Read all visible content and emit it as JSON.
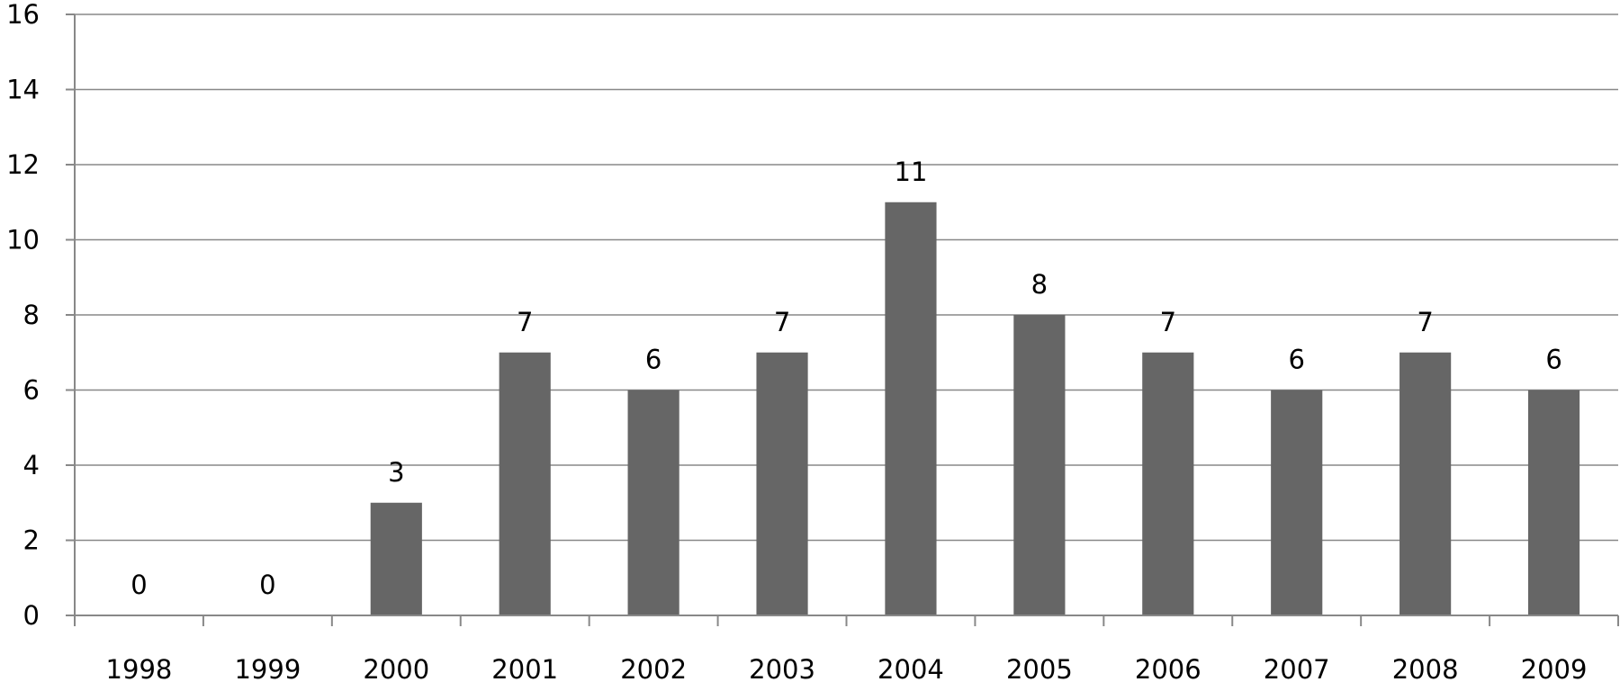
{
  "chart_data": {
    "type": "bar",
    "categories": [
      "1998",
      "1999",
      "2000",
      "2001",
      "2002",
      "2003",
      "2004",
      "2005",
      "2006",
      "2007",
      "2008",
      "2009"
    ],
    "values": [
      0,
      0,
      3,
      7,
      6,
      7,
      11,
      8,
      7,
      6,
      7,
      6
    ],
    "data_labels": [
      "0",
      "0",
      "3",
      "7",
      "6",
      "7",
      "11",
      "8",
      "7",
      "6",
      "7",
      "6"
    ],
    "y_ticks": [
      "0",
      "2",
      "4",
      "6",
      "8",
      "10",
      "12",
      "14",
      "16"
    ],
    "ylim": [
      0,
      16
    ],
    "title": "",
    "xlabel": "",
    "ylabel": "",
    "grid": true,
    "legend": "none",
    "bar_color": "#666666",
    "grid_color": "#888888"
  }
}
